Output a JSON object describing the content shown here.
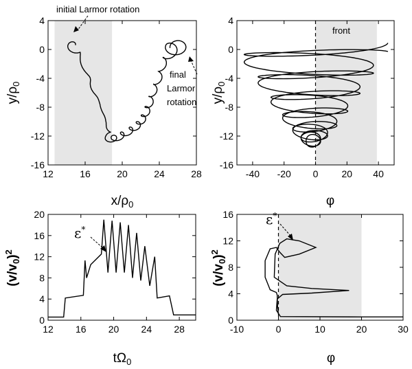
{
  "chart_data": [
    {
      "type": "line",
      "panel": "top-left",
      "xlabel": "x/ρ0",
      "ylabel": "y/ρ0",
      "xlim": [
        12,
        28
      ],
      "ylim": [
        -16,
        4
      ],
      "xticks": [
        "12",
        "16",
        "20",
        "24",
        "28"
      ],
      "yticks": [
        "4",
        "0",
        "-4",
        "-8",
        "-12",
        "-16"
      ],
      "shaded_x": [
        12.7,
        18.9
      ],
      "annotations": [
        "initial Larmor rotation",
        "final",
        "Larmor",
        "rotation"
      ],
      "series": [
        {
          "description": "trajectory",
          "guiding_center": [
            [
              14.2,
              0.6
            ],
            [
              15.3,
              -0.5
            ],
            [
              16.5,
              -4.5
            ],
            [
              17.6,
              -7.6
            ],
            [
              18.3,
              -10.2
            ],
            [
              18.6,
              -12.4
            ],
            [
              19.3,
              -12.3
            ],
            [
              20.4,
              -11.6
            ],
            [
              21.4,
              -10.8
            ],
            [
              22.1,
              -9.9
            ],
            [
              22.6,
              -8.7
            ],
            [
              23.0,
              -7.3
            ],
            [
              23.5,
              -5.5
            ],
            [
              24.1,
              -3.6
            ],
            [
              24.6,
              -1.4
            ],
            [
              25.5,
              0.2
            ],
            [
              26.2,
              0.2
            ]
          ],
          "larmor_radius": [
            0.75,
            0.2,
            0.2,
            0.05,
            0.05,
            0.45,
            0.45,
            0.4,
            0.4,
            0.35,
            0.35,
            0.35,
            0.3,
            0.3,
            0.3,
            0.9,
            1.05
          ]
        }
      ]
    },
    {
      "type": "line",
      "panel": "top-right",
      "xlabel": "φ",
      "ylabel": "y/ρ0",
      "xlim": [
        -50,
        50
      ],
      "ylim": [
        -16,
        4
      ],
      "xticks": [
        "-40",
        "-20",
        "0",
        "20",
        "40"
      ],
      "yticks": [
        "4",
        "0",
        "-4",
        "-8",
        "-12",
        "-16"
      ],
      "shaded_x": [
        0,
        39
      ],
      "front_x": 0,
      "annotations": [
        "front"
      ]
    },
    {
      "type": "line",
      "panel": "bottom-left",
      "xlabel": "tΩ0",
      "ylabel": "(v/v0)2",
      "xlim": [
        12,
        30
      ],
      "ylim": [
        0,
        20
      ],
      "xticks": [
        "12",
        "16",
        "20",
        "24",
        "28"
      ],
      "yticks": [
        "0",
        "4",
        "8",
        "12",
        "16",
        "20"
      ],
      "annotations": [
        "ε*"
      ],
      "series": [
        {
          "x": [
            12,
            13.9,
            14.1,
            16.3,
            16.5,
            16.7,
            17.2,
            18.5,
            18.8,
            19.3,
            19.8,
            20.3,
            20.8,
            21.3,
            21.8,
            22.3,
            22.8,
            23.3,
            23.8,
            24.4,
            25.0,
            25.3,
            26.8,
            27.3,
            27.6,
            30
          ],
          "y": [
            0.6,
            0.6,
            4.2,
            4.7,
            11.3,
            8.0,
            10.5,
            12.5,
            19.0,
            9.0,
            18.8,
            9.0,
            18.5,
            9.0,
            18.0,
            8.0,
            16.5,
            7.5,
            14.0,
            6.5,
            12.0,
            4.2,
            4.6,
            1.0,
            1.0,
            1.0
          ]
        }
      ]
    },
    {
      "type": "line",
      "panel": "bottom-right",
      "xlabel": "φ",
      "ylabel": "(v/v0)2",
      "xlim": [
        -10,
        30
      ],
      "ylim": [
        0,
        16
      ],
      "xticks": [
        "-10",
        "0",
        "10",
        "20",
        "30"
      ],
      "yticks": [
        "0",
        "4",
        "8",
        "12",
        "16"
      ],
      "shaded_x": [
        0,
        20
      ],
      "front_x": 0,
      "annotations": [
        "ε*"
      ],
      "series": [
        {
          "description": "trajectory",
          "points": [
            [
              30,
              0.5
            ],
            [
              20,
              0.5
            ],
            [
              0.5,
              0.55
            ],
            [
              -0.5,
              1.5
            ],
            [
              -0.3,
              3.2
            ],
            [
              1.0,
              3.9
            ],
            [
              8,
              4.1
            ],
            [
              17,
              4.5
            ],
            [
              8,
              4.8
            ],
            [
              2,
              5.2
            ],
            [
              -1.0,
              6.5
            ],
            [
              -0.8,
              10.0
            ],
            [
              0.3,
              11.6
            ],
            [
              0.5,
              11.7
            ],
            [
              2,
              12.3
            ],
            [
              5,
              12.0
            ],
            [
              9,
              11.0
            ],
            [
              5,
              10.0
            ],
            [
              1.5,
              9.5
            ],
            [
              0.3,
              10.3
            ],
            [
              -0.5,
              11.0
            ],
            [
              -2,
              10.8
            ],
            [
              -3.2,
              9.0
            ],
            [
              -3.2,
              6.5
            ],
            [
              -2,
              4.6
            ],
            [
              -0.5,
              4.2
            ],
            [
              -0.3,
              3.8
            ],
            [
              -0.2,
              2.0
            ],
            [
              0,
              0.9
            ]
          ]
        }
      ]
    }
  ]
}
